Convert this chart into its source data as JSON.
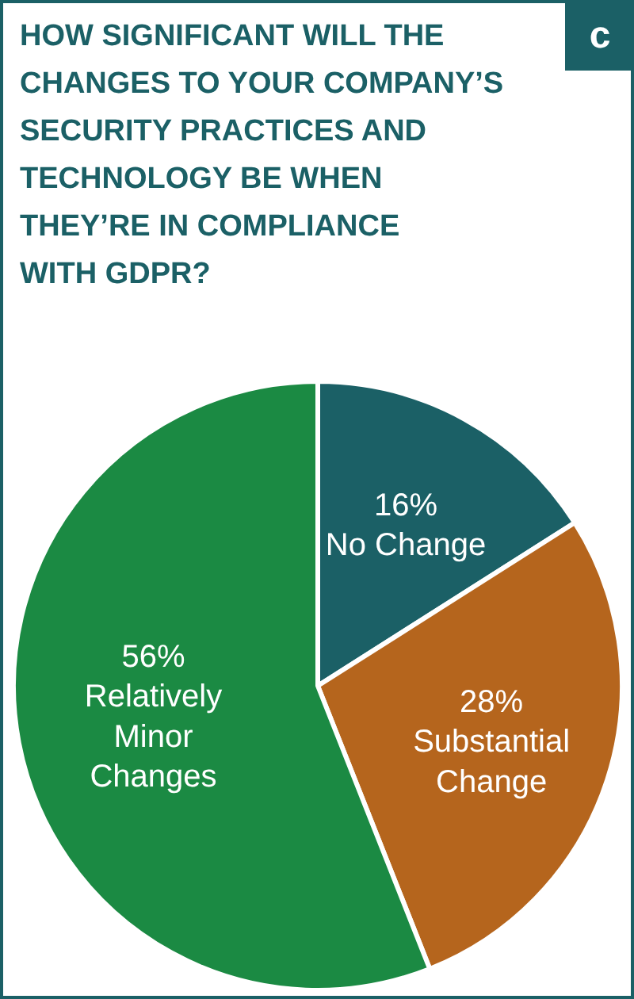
{
  "chart_data": {
    "type": "pie",
    "title": "HOW SIGNIFICANT WILL THE CHANGES TO YOUR COMPANY’S SECURITY PRACTICES AND TECHNOLOGY BE WHEN THEY’RE IN COMPLIANCE WITH GDPR?",
    "annotations": [
      "c"
    ],
    "categories": [
      "No Change",
      "Substantial Change",
      "Relatively Minor Changes"
    ],
    "values": [
      16,
      28,
      56
    ],
    "colors": [
      "#1b6066",
      "#b5651d",
      "#1b8a43"
    ],
    "value_labels": [
      "16%",
      "28%",
      "56%"
    ]
  }
}
